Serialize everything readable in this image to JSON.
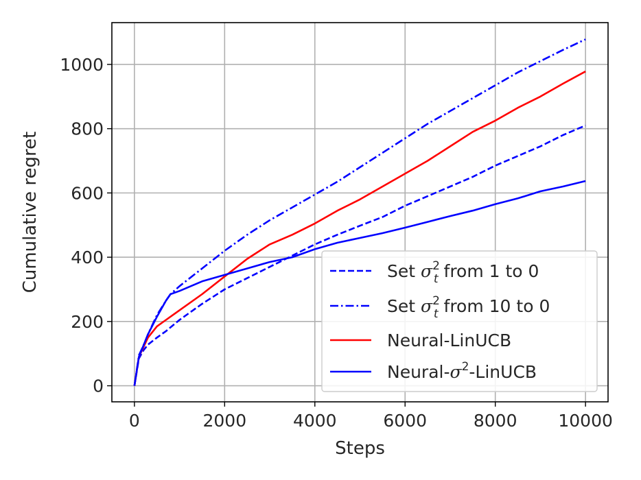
{
  "chart_data": {
    "type": "line",
    "title": "",
    "xlabel": "Steps",
    "ylabel": "Cumulative regret",
    "xlim": [
      -500,
      10500
    ],
    "ylim": [
      -50,
      1130
    ],
    "xticks": [
      0,
      2000,
      4000,
      6000,
      8000,
      10000
    ],
    "xtick_labels": [
      "0",
      "2000",
      "4000",
      "6000",
      "8000",
      "10000"
    ],
    "yticks": [
      0,
      200,
      400,
      600,
      800,
      1000
    ],
    "ytick_labels": [
      "0",
      "200",
      "400",
      "600",
      "800",
      "1000"
    ],
    "grid": true,
    "legend_position": "lower-right",
    "series": [
      {
        "name": "Set σt² from 1 to 0",
        "name_parts": [
          "Set ",
          "σ",
          "t",
          "2",
          " from 1 to 0"
        ],
        "color": "#0000ff",
        "style": "dashed",
        "x": [
          0,
          100,
          200,
          300,
          500,
          700,
          1000,
          1500,
          2000,
          2500,
          3000,
          3500,
          4000,
          4500,
          5000,
          5500,
          6000,
          6500,
          7000,
          7500,
          8000,
          8500,
          9000,
          9500,
          10000
        ],
        "y": [
          0,
          85,
          110,
          128,
          150,
          170,
          205,
          255,
          300,
          335,
          370,
          405,
          440,
          470,
          498,
          525,
          560,
          590,
          620,
          650,
          685,
          715,
          745,
          780,
          810
        ]
      },
      {
        "name": "Set σt² from 10 to 0",
        "name_parts": [
          "Set ",
          "σ",
          "t",
          "2",
          " from 10 to 0"
        ],
        "color": "#0000ff",
        "style": "dashdot",
        "x": [
          0,
          100,
          200,
          300,
          500,
          700,
          800,
          1000,
          1500,
          2000,
          2500,
          3000,
          3500,
          4000,
          4500,
          5000,
          5500,
          6000,
          6500,
          7000,
          7500,
          8000,
          8500,
          9000,
          9500,
          10000
        ],
        "y": [
          0,
          95,
          125,
          160,
          220,
          265,
          285,
          310,
          365,
          420,
          470,
          515,
          555,
          595,
          635,
          680,
          725,
          770,
          815,
          855,
          895,
          935,
          975,
          1010,
          1045,
          1078
        ]
      },
      {
        "name": "Neural-LinUCB",
        "name_parts": [
          "Neural-LinUCB"
        ],
        "color": "#ff0000",
        "style": "solid",
        "x": [
          0,
          100,
          200,
          300,
          500,
          700,
          1000,
          1500,
          2000,
          2500,
          3000,
          3500,
          4000,
          4500,
          5000,
          5500,
          6000,
          6500,
          7000,
          7500,
          8000,
          8500,
          9000,
          9500,
          10000
        ],
        "y": [
          0,
          90,
          120,
          150,
          185,
          205,
          235,
          285,
          340,
          395,
          440,
          470,
          505,
          545,
          580,
          620,
          660,
          700,
          745,
          790,
          825,
          865,
          900,
          940,
          978
        ]
      },
      {
        "name": "Neural-σ²-LinUCB",
        "name_parts": [
          "Neural-",
          "σ",
          "",
          "2",
          "-LinUCB"
        ],
        "color": "#0000ff",
        "style": "solid",
        "x": [
          0,
          100,
          200,
          300,
          500,
          700,
          800,
          1000,
          1500,
          2000,
          2500,
          3000,
          3500,
          4000,
          4500,
          5000,
          5500,
          6000,
          6500,
          7000,
          7500,
          8000,
          8500,
          9000,
          9500,
          10000
        ],
        "y": [
          0,
          90,
          125,
          160,
          215,
          265,
          285,
          295,
          325,
          345,
          365,
          385,
          400,
          425,
          445,
          460,
          475,
          492,
          510,
          528,
          545,
          565,
          583,
          605,
          620,
          637
        ]
      }
    ]
  }
}
